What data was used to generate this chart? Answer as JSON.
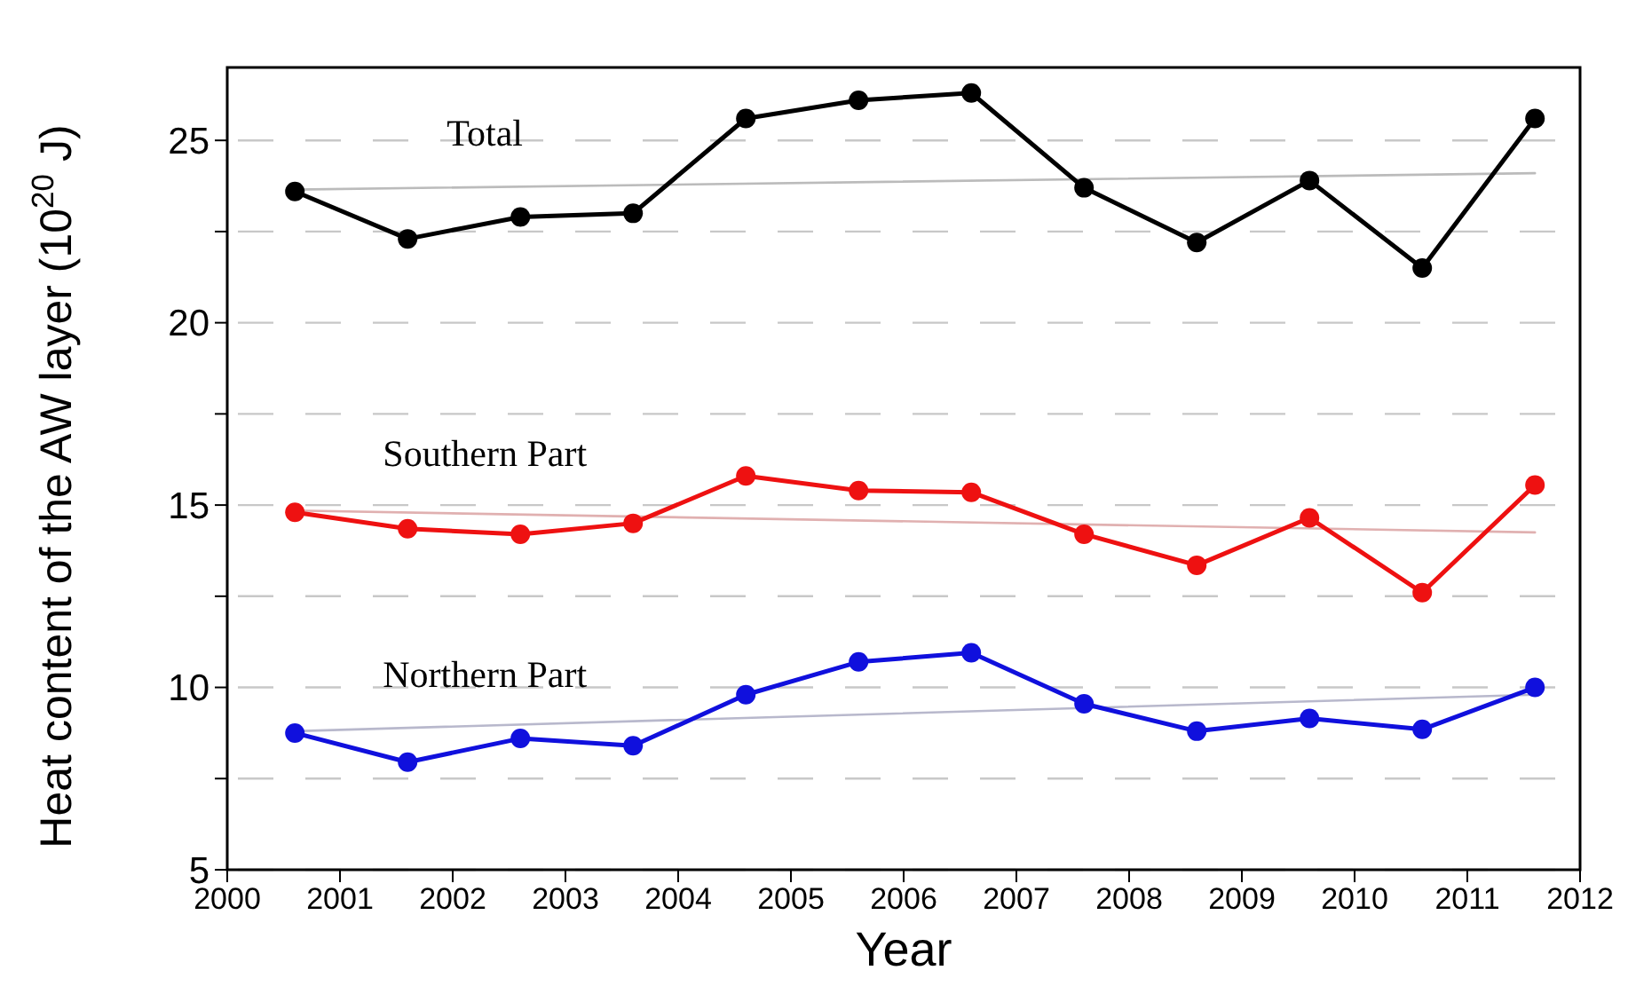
{
  "chart_data": {
    "type": "line",
    "xlabel": "Year",
    "ylabel": "Heat content of the AW layer (10$^{20}$ J)",
    "xlim": [
      2000,
      2012
    ],
    "xticks": [
      2000,
      2001,
      2002,
      2003,
      2004,
      2005,
      2006,
      2007,
      2008,
      2009,
      2010,
      2011,
      2012
    ],
    "ylim": [
      5,
      27
    ],
    "yticks": [
      5,
      {
        "value": 7.5,
        "label": null
      },
      10,
      {
        "value": 12.5,
        "label": null
      },
      15,
      {
        "value": 17.5,
        "label": null
      },
      20,
      {
        "value": 22.5,
        "label": null
      },
      25
    ],
    "grid": "y",
    "marker": "circle",
    "line_style": "solid",
    "x": [
      2000.6,
      2001.6,
      2002.6,
      2003.6,
      2004.6,
      2005.6,
      2006.6,
      2007.6,
      2008.6,
      2009.6,
      2010.6,
      2011.6
    ],
    "series": [
      {
        "name": "Total",
        "color": "#000000",
        "values": [
          23.6,
          22.3,
          22.9,
          23.0,
          25.6,
          26.1,
          26.3,
          23.7,
          22.2,
          23.9,
          21.5,
          25.6
        ]
      },
      {
        "name": "Southern Part",
        "color": "#ee1111",
        "values": [
          14.8,
          14.35,
          14.2,
          14.5,
          15.8,
          15.4,
          15.35,
          14.2,
          13.35,
          14.65,
          12.6,
          15.55
        ]
      },
      {
        "name": "Northern Part",
        "color": "#1010dd",
        "values": [
          8.75,
          7.95,
          8.6,
          8.4,
          9.8,
          10.7,
          10.95,
          9.55,
          8.8,
          9.15,
          8.85,
          10.0
        ]
      },
      {
        "color": "#bbbbbb",
        "values": [
          23.65,
          null,
          null,
          null,
          null,
          null,
          null,
          null,
          null,
          null,
          null,
          24.1
        ],
        "marker": "none"
      },
      {
        "color": "#e0b0b0",
        "values": [
          14.85,
          null,
          null,
          null,
          null,
          null,
          null,
          null,
          null,
          null,
          null,
          14.25
        ],
        "marker": "none"
      },
      {
        "color": "#b8b8cc",
        "values": [
          8.8,
          null,
          null,
          null,
          null,
          null,
          null,
          null,
          null,
          null,
          null,
          9.8
        ],
        "marker": "none"
      }
    ]
  }
}
